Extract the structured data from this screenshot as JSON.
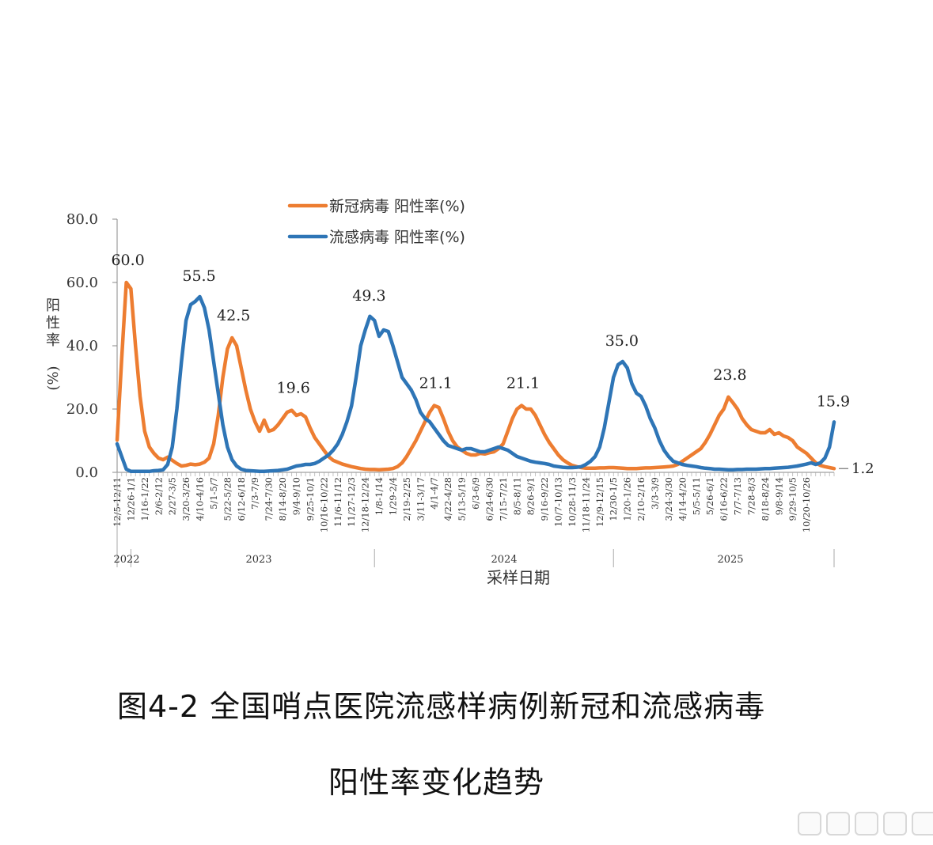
{
  "chart_data": {
    "type": "line",
    "title": "",
    "xlabel": "采样日期",
    "ylabel": "阳性率(%)",
    "ylim": [
      0,
      80
    ],
    "y_ticks": [
      "0.0",
      "20.0",
      "40.0",
      "60.0",
      "80.0"
    ],
    "legend": {
      "placement": "top-center"
    },
    "year_labels": [
      "2022",
      "2023",
      "2024",
      "2025"
    ],
    "x_tick_labels": [
      "12/5-12/11",
      "12/26-1/1",
      "1/16-1/22",
      "2/6-2/12",
      "2/27-3/5",
      "3/20-3/26",
      "4/10-4/16",
      "5/1-5/7",
      "5/22-5/28",
      "6/12-6/18",
      "7/3-7/9",
      "7/24-7/30",
      "8/14-8/20",
      "9/4-9/10",
      "9/25-10/1",
      "10/16-10/22",
      "11/6-11/12",
      "11/27-12/3",
      "12/18-12/24",
      "1/8-1/14",
      "1/29-2/4",
      "2/19-2/25",
      "3/11-3/17",
      "4/1-4/7",
      "4/22-4/28",
      "5/13-5/19",
      "6/3-6/9",
      "6/24-6/30",
      "7/15-7/21",
      "8/5-8/11",
      "8/26-9/1",
      "9/16-9/22",
      "10/7-10/13",
      "10/28-11/3",
      "11/18-11/24",
      "12/9-12/15",
      "12/30-1/5",
      "1/20-1/26",
      "2/10-2/16",
      "3/3-3/9",
      "3/24-3/30",
      "4/14-4/20",
      "5/5-5/11",
      "5/26-6/1",
      "6/16-6/22",
      "7/7-7/13",
      "7/28-8/3",
      "8/18-8/24",
      "9/8-9/14",
      "9/29-10/5",
      "10/20-10/26"
    ],
    "series": [
      {
        "name": "新冠病毒 阳性率(%)",
        "color": "#ED7D31",
        "peak_labels": [
          "60.0",
          "42.5",
          "19.6",
          "21.1",
          "21.1",
          "23.8"
        ],
        "end_label": "1.2",
        "values": [
          10.2,
          36.0,
          60.0,
          58.0,
          40.0,
          24.0,
          13.0,
          8.0,
          6.0,
          4.5,
          4.0,
          4.8,
          3.8,
          2.8,
          2.0,
          2.2,
          2.6,
          2.4,
          2.6,
          3.2,
          4.5,
          9.0,
          18.0,
          30.0,
          39.0,
          42.5,
          40.0,
          33.0,
          26.0,
          20.0,
          16.0,
          13.0,
          16.5,
          13.0,
          13.5,
          15.0,
          17.0,
          19.0,
          19.6,
          18.0,
          18.5,
          17.5,
          14.0,
          11.0,
          9.0,
          7.0,
          5.0,
          3.8,
          3.2,
          2.6,
          2.2,
          1.8,
          1.5,
          1.2,
          1.0,
          0.9,
          0.9,
          0.8,
          0.9,
          1.0,
          1.2,
          1.8,
          3.0,
          5.0,
          7.5,
          10.0,
          13.0,
          16.0,
          19.0,
          21.1,
          20.5,
          17.0,
          13.0,
          10.0,
          8.0,
          7.0,
          6.0,
          5.5,
          5.5,
          6.0,
          5.8,
          6.2,
          6.5,
          7.5,
          9.0,
          13.0,
          17.0,
          20.0,
          21.1,
          20.0,
          20.0,
          18.0,
          15.0,
          12.0,
          9.5,
          7.5,
          5.5,
          4.0,
          3.0,
          2.2,
          1.8,
          1.5,
          1.3,
          1.3,
          1.3,
          1.4,
          1.4,
          1.5,
          1.5,
          1.4,
          1.3,
          1.2,
          1.2,
          1.2,
          1.3,
          1.4,
          1.4,
          1.5,
          1.6,
          1.7,
          1.8,
          2.0,
          2.5,
          3.5,
          4.5,
          5.5,
          6.5,
          7.5,
          9.5,
          12.0,
          15.0,
          18.0,
          20.0,
          23.8,
          22.0,
          20.0,
          17.0,
          15.0,
          13.5,
          13.0,
          12.5,
          12.5,
          13.5,
          12.0,
          12.5,
          11.5,
          11.0,
          10.0,
          8.0,
          7.0,
          6.0,
          4.5,
          3.0,
          2.2,
          1.8,
          1.5,
          1.2
        ]
      },
      {
        "name": "流感病毒 阳性率(%)",
        "color": "#2E75B6",
        "peak_labels": [
          "55.5",
          "49.3",
          "35.0",
          "15.9"
        ],
        "values": [
          9.0,
          5.0,
          1.0,
          0.3,
          0.3,
          0.3,
          0.3,
          0.3,
          0.5,
          0.6,
          0.8,
          2.5,
          8.0,
          20.0,
          35.0,
          48.0,
          53.0,
          54.0,
          55.5,
          52.0,
          45.0,
          35.0,
          25.0,
          15.0,
          8.0,
          4.0,
          2.0,
          1.0,
          0.6,
          0.5,
          0.4,
          0.3,
          0.3,
          0.4,
          0.5,
          0.6,
          0.8,
          1.0,
          1.5,
          2.0,
          2.2,
          2.5,
          2.5,
          2.8,
          3.5,
          4.5,
          5.5,
          7.0,
          9.0,
          12.0,
          16.0,
          21.0,
          30.0,
          40.0,
          45.0,
          49.3,
          48.0,
          43.0,
          45.0,
          44.5,
          40.0,
          35.0,
          30.0,
          28.0,
          26.0,
          23.0,
          19.0,
          17.0,
          16.0,
          14.0,
          12.0,
          10.0,
          8.5,
          8.0,
          7.5,
          7.0,
          7.5,
          7.5,
          7.0,
          6.5,
          6.5,
          7.0,
          7.5,
          8.0,
          7.5,
          7.0,
          6.0,
          5.0,
          4.5,
          4.0,
          3.5,
          3.2,
          3.0,
          2.8,
          2.5,
          2.0,
          1.8,
          1.6,
          1.5,
          1.5,
          1.6,
          1.8,
          2.5,
          3.5,
          5.0,
          8.0,
          14.0,
          22.0,
          30.0,
          34.0,
          35.0,
          33.0,
          28.0,
          25.0,
          24.0,
          21.0,
          17.0,
          14.0,
          10.0,
          7.0,
          5.0,
          3.5,
          3.0,
          2.5,
          2.2,
          2.0,
          1.8,
          1.5,
          1.3,
          1.2,
          1.0,
          1.0,
          0.9,
          0.8,
          0.8,
          0.9,
          0.9,
          1.0,
          1.0,
          1.0,
          1.1,
          1.2,
          1.2,
          1.3,
          1.4,
          1.5,
          1.6,
          1.8,
          2.0,
          2.3,
          2.6,
          3.0,
          2.5,
          3.0,
          4.5,
          8.0,
          15.9
        ]
      }
    ]
  },
  "caption": {
    "line1": "图4-2 全国哨点医院流感样病例新冠和流感病毒",
    "line2": "阳性率变化趋势"
  }
}
